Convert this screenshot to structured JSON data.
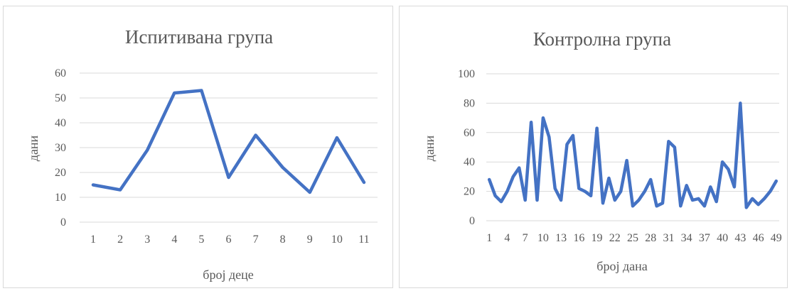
{
  "chart_data": [
    {
      "type": "line",
      "title": "Испитивана група",
      "xlabel": "број деце",
      "ylabel": "дани",
      "ylim": [
        0,
        60
      ],
      "yticks": [
        0,
        10,
        20,
        30,
        40,
        50,
        60
      ],
      "categories": [
        "1",
        "2",
        "3",
        "4",
        "5",
        "6",
        "7",
        "8",
        "9",
        "10",
        "11"
      ],
      "series": [
        {
          "values": [
            15,
            13,
            29,
            52,
            53,
            18,
            35,
            22,
            12,
            34,
            16
          ]
        }
      ],
      "grid": true,
      "color": "#4472c4"
    },
    {
      "type": "line",
      "title": "Контролна група",
      "xlabel": "број дана",
      "ylabel": "дани",
      "ylim": [
        0,
        100
      ],
      "yticks": [
        0,
        20,
        40,
        60,
        80,
        100
      ],
      "categories": [
        "1",
        "2",
        "3",
        "4",
        "5",
        "6",
        "7",
        "8",
        "9",
        "10",
        "11",
        "12",
        "13",
        "14",
        "15",
        "16",
        "17",
        "18",
        "19",
        "20",
        "21",
        "22",
        "23",
        "24",
        "25",
        "26",
        "27",
        "28",
        "29",
        "30",
        "31",
        "32",
        "33",
        "34",
        "35",
        "36",
        "37",
        "38",
        "39",
        "40",
        "41",
        "42",
        "43",
        "44",
        "45",
        "46",
        "47",
        "48",
        "49"
      ],
      "tick_labels_shown": [
        "1",
        "4",
        "7",
        "10",
        "13",
        "16",
        "19",
        "22",
        "25",
        "28",
        "31",
        "34",
        "37",
        "40",
        "43",
        "46",
        "49"
      ],
      "series": [
        {
          "values": [
            28,
            17,
            13,
            20,
            30,
            36,
            14,
            67,
            14,
            70,
            57,
            22,
            14,
            52,
            58,
            22,
            20,
            17,
            63,
            12,
            29,
            14,
            20,
            41,
            10,
            14,
            20,
            28,
            10,
            12,
            54,
            50,
            10,
            24,
            14,
            15,
            10,
            23,
            13,
            40,
            35,
            23,
            80,
            9,
            15,
            11,
            15,
            20,
            27
          ]
        }
      ],
      "grid": true,
      "color": "#4472c4"
    }
  ]
}
